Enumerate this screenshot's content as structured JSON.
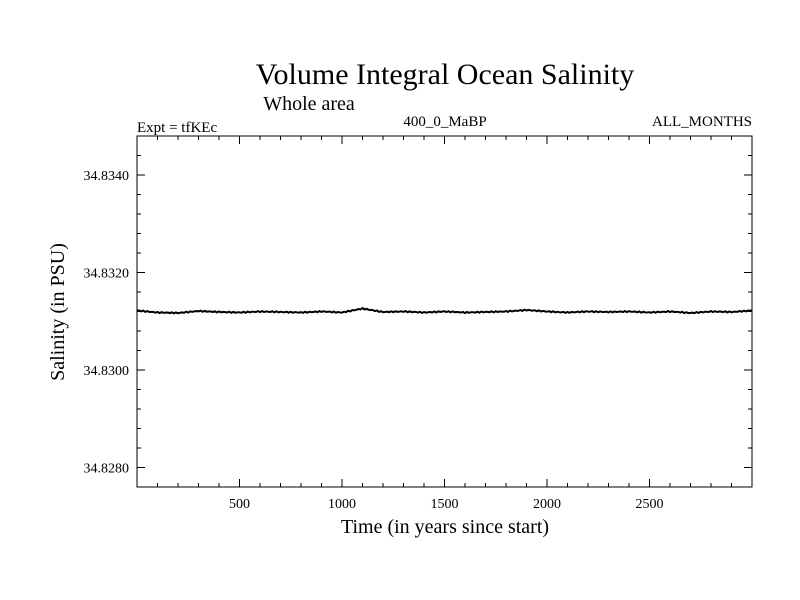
{
  "chart_data": {
    "type": "line",
    "title": "Volume Integral Ocean Salinity",
    "subtitle": "Whole area",
    "annotations": {
      "left": "Expt = tfKEc",
      "center": "400_0_MaBP",
      "right": "ALL_MONTHS"
    },
    "xlabel": "Time (in years since start)",
    "ylabel": "Salinity (in PSU)",
    "xlim": [
      0,
      3000
    ],
    "ylim": [
      34.8276,
      34.8348
    ],
    "x_ticks": [
      500,
      1000,
      1500,
      2000,
      2500
    ],
    "x_tick_labels": [
      "500",
      "1000",
      "1500",
      "2000",
      "2500"
    ],
    "y_ticks": [
      34.828,
      34.83,
      34.832,
      34.834
    ],
    "y_tick_labels": [
      "34.8280",
      "34.8300",
      "34.8320",
      "34.8340"
    ],
    "grid": false,
    "series": [
      {
        "color": "#000000",
        "x": [
          0,
          100,
          200,
          300,
          400,
          500,
          600,
          700,
          800,
          900,
          1000,
          1100,
          1200,
          1300,
          1400,
          1500,
          1600,
          1700,
          1800,
          1900,
          2000,
          2100,
          2200,
          2300,
          2400,
          2500,
          2600,
          2700,
          2800,
          2900,
          3000
        ],
        "y": [
          34.83122,
          34.83118,
          34.83117,
          34.83121,
          34.83119,
          34.83118,
          34.8312,
          34.83119,
          34.83118,
          34.8312,
          34.83118,
          34.83126,
          34.83119,
          34.8312,
          34.83118,
          34.8312,
          34.83118,
          34.83119,
          34.8312,
          34.83123,
          34.8312,
          34.83118,
          34.8312,
          34.83119,
          34.8312,
          34.83118,
          34.8312,
          34.83117,
          34.8312,
          34.83119,
          34.83122
        ]
      }
    ]
  }
}
